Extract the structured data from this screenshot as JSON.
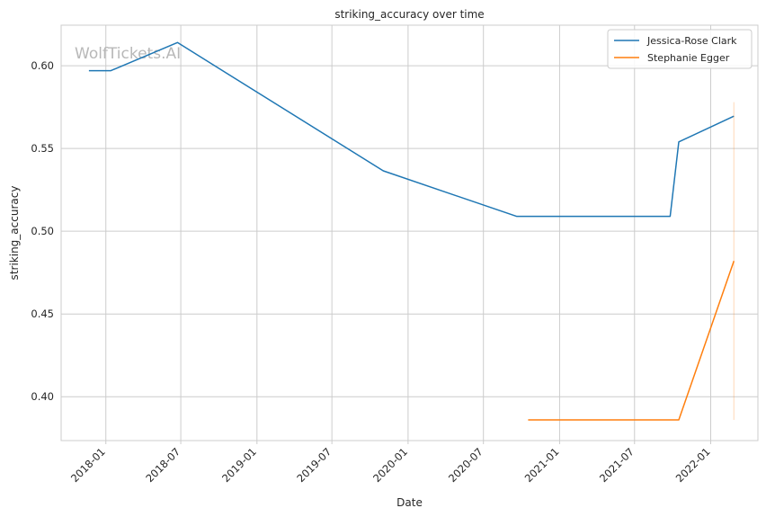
{
  "chart_data": {
    "type": "line",
    "title": "striking_accuracy over time",
    "xlabel": "Date",
    "ylabel": "striking_accuracy",
    "watermark": "WolfTickets.AI",
    "x_ticks": [
      "2018-01",
      "2018-07",
      "2019-01",
      "2019-07",
      "2020-01",
      "2020-07",
      "2021-01",
      "2021-07",
      "2022-01"
    ],
    "y_ticks": [
      "0.40",
      "0.45",
      "0.50",
      "0.55",
      "0.60"
    ],
    "xlim": [
      "2017-09-15",
      "2022-04-25"
    ],
    "ylim": [
      0.3735,
      0.6245
    ],
    "grid": true,
    "legend_position": "top-right",
    "series": [
      {
        "name": "Jessica-Rose Clark",
        "color": "#1f77b4",
        "points": [
          {
            "x": "2017-11-21",
            "y": 0.597
          },
          {
            "x": "2018-01-13",
            "y": 0.597
          },
          {
            "x": "2018-06-23",
            "y": 0.614
          },
          {
            "x": "2019-11-02",
            "y": 0.5365
          },
          {
            "x": "2020-09-19",
            "y": 0.509
          },
          {
            "x": "2021-09-25",
            "y": 0.509
          },
          {
            "x": "2021-10-16",
            "y": 0.554
          },
          {
            "x": "2022-02-26",
            "y": 0.5695
          }
        ]
      },
      {
        "name": "Stephanie Egger",
        "color": "#ff7f0e",
        "points": [
          {
            "x": "2020-10-17",
            "y": 0.386
          },
          {
            "x": "2021-10-16",
            "y": 0.386
          },
          {
            "x": "2022-02-26",
            "y": 0.482
          }
        ],
        "band": {
          "x": "2022-02-26",
          "low": 0.386,
          "high": 0.578
        }
      }
    ]
  }
}
